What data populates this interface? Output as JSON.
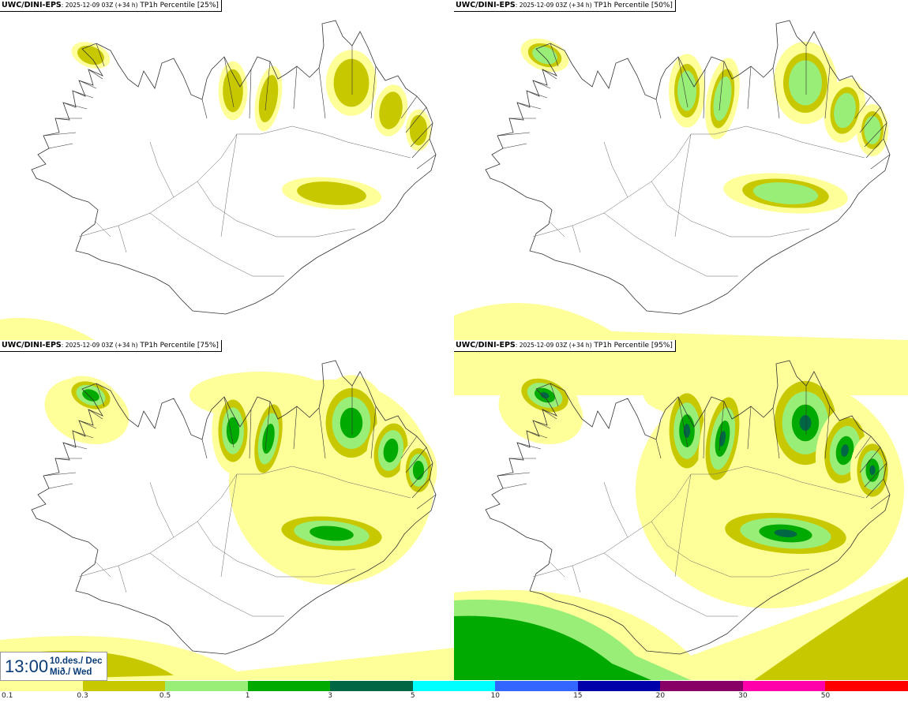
{
  "panels": [
    {
      "model": "UWC/DINI-EPS",
      "run": ": 2025-12-09 03Z (+34 h)",
      "product": " TP1h Percentile [25%]",
      "level": 0
    },
    {
      "model": "UWC/DINI-EPS",
      "run": ": 2025-12-09 03Z (+34 h)",
      "product": " TP1h Percentile [50%]",
      "level": 1
    },
    {
      "model": "UWC/DINI-EPS",
      "run": ": 2025-12-09 03Z (+34 h)",
      "product": " TP1h Percentile [75%]",
      "level": 2
    },
    {
      "model": "UWC/DINI-EPS",
      "run": ": 2025-12-09 03Z (+34 h)",
      "product": " TP1h Percentile [95%]",
      "level": 3
    }
  ],
  "valid_time": {
    "time": "13:00",
    "date": "10.des./ Dec",
    "weekday": "Mið./ Wed"
  },
  "legend": {
    "colors": [
      "#ffff99",
      "#c8c800",
      "#99ee77",
      "#00aa00",
      "#006644",
      "#00ffff",
      "#3366ff",
      "#0000aa",
      "#880066",
      "#ff00aa",
      "#ff0000"
    ],
    "labels": [
      "0.1",
      "0.3",
      "0.5",
      "1",
      "3",
      "5",
      "10",
      "15",
      "20",
      "30",
      "50"
    ]
  },
  "colors": {
    "c01": "#ffff99",
    "c03": "#c8c800",
    "c05": "#99ee77",
    "c1": "#00aa00",
    "c3": "#006644",
    "coast": "#333333"
  }
}
